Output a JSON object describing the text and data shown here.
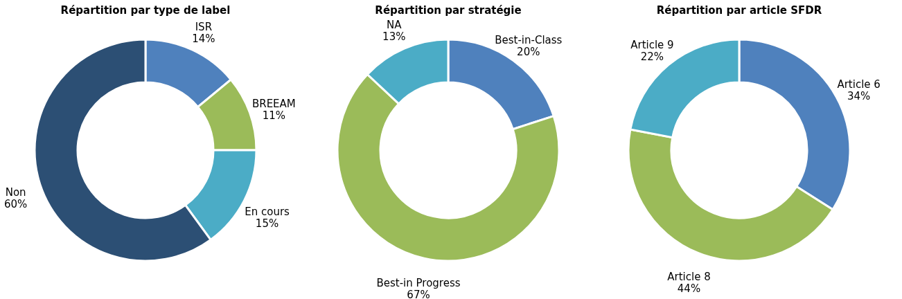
{
  "chart_data": [
    {
      "type": "donut",
      "title": "Répartition par type de label",
      "categories": [
        "ISR",
        "BREEAM",
        "En cours",
        "Non"
      ],
      "values": [
        14,
        11,
        15,
        60
      ],
      "value_labels": [
        "14%",
        "11%",
        "15%",
        "60%"
      ],
      "colors": [
        "#4f81bd",
        "#9bbb59",
        "#4bacc6",
        "#2c4f74"
      ]
    },
    {
      "type": "donut",
      "title": "Répartition par stratégie",
      "categories": [
        "Best-in-Class",
        "Best-in Progress",
        "NA"
      ],
      "values": [
        20,
        67,
        13
      ],
      "value_labels": [
        "20%",
        "67%",
        "13%"
      ],
      "colors": [
        "#4f81bd",
        "#9bbb59",
        "#4bacc6"
      ]
    },
    {
      "type": "donut",
      "title": "Répartition par article SFDR",
      "categories": [
        "Article 6",
        "Article 8",
        "Article 9"
      ],
      "values": [
        34,
        44,
        22
      ],
      "value_labels": [
        "34%",
        "44%",
        "22%"
      ],
      "colors": [
        "#4f81bd",
        "#9bbb59",
        "#4bacc6"
      ]
    }
  ]
}
